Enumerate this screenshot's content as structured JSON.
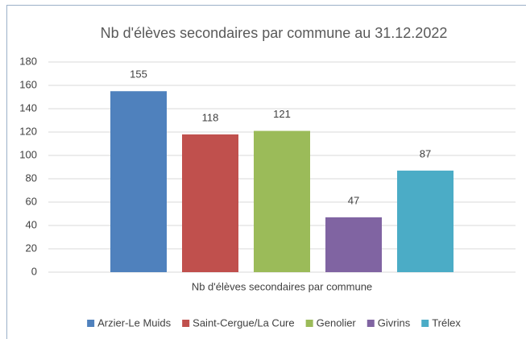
{
  "chart_data": {
    "type": "bar",
    "title": "Nb d'élèves secondaires par commune au 31.12.2022",
    "categories": [
      "Nb d'élèves secondaires par commune"
    ],
    "series": [
      {
        "name": "Arzier-Le Muids",
        "color": "#4f81bd",
        "values": [
          155
        ]
      },
      {
        "name": "Saint-Cergue/La Cure",
        "color": "#c0504d",
        "values": [
          118
        ]
      },
      {
        "name": "Genolier",
        "color": "#9bbb59",
        "values": [
          121
        ]
      },
      {
        "name": "Givrins",
        "color": "#8064a2",
        "values": [
          47
        ]
      },
      {
        "name": "Trélex",
        "color": "#4bacc6",
        "values": [
          87
        ]
      }
    ],
    "ylim": [
      0,
      180
    ],
    "yticks": [
      0,
      20,
      40,
      60,
      80,
      100,
      120,
      140,
      160,
      180
    ],
    "grid": true,
    "legend": "bottom"
  }
}
